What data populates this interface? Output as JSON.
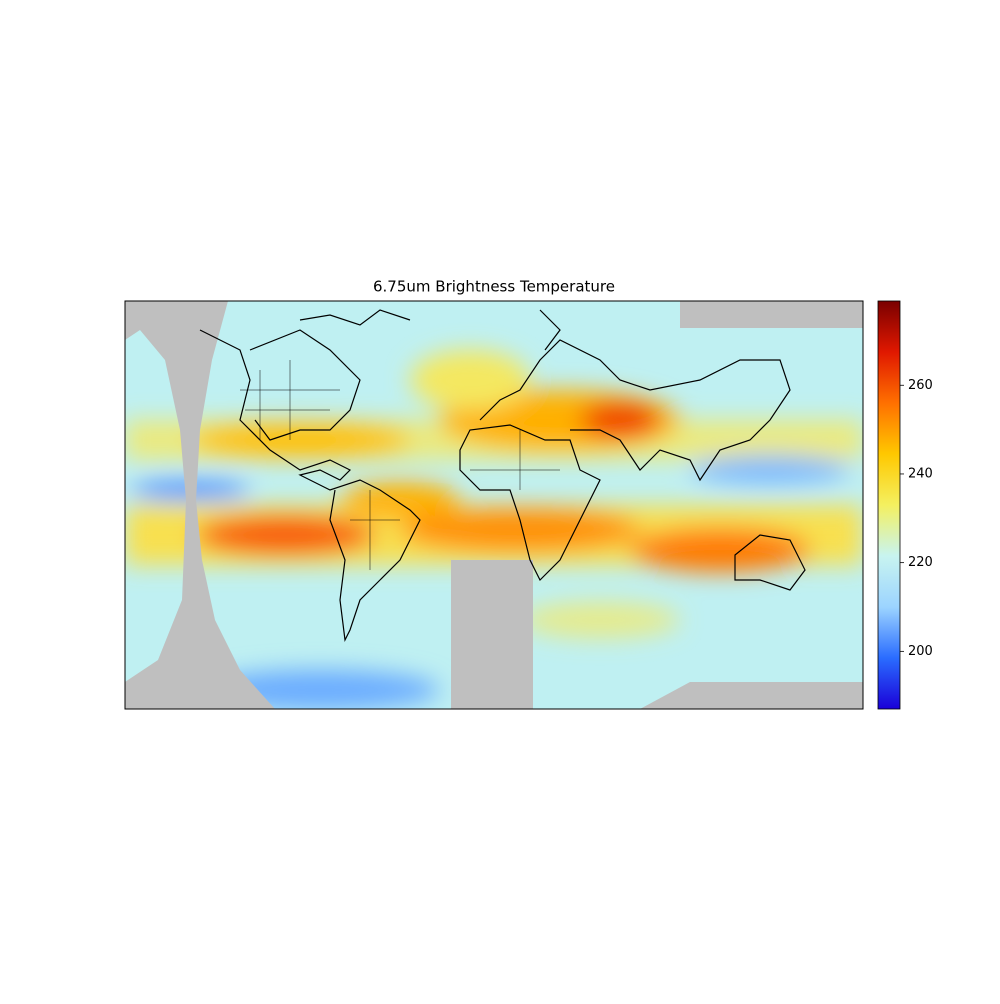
{
  "title": "6.75um Brightness Temperature",
  "colorbar": {
    "lim": [
      187,
      279
    ],
    "ticks": [
      200,
      220,
      240,
      260
    ],
    "colors": [
      "#1a00d8",
      "#2a6cff",
      "#9cd4ff",
      "#c8f4f0",
      "#f4f060",
      "#ffc800",
      "#ff7000",
      "#e01800",
      "#7a0000"
    ]
  }
}
